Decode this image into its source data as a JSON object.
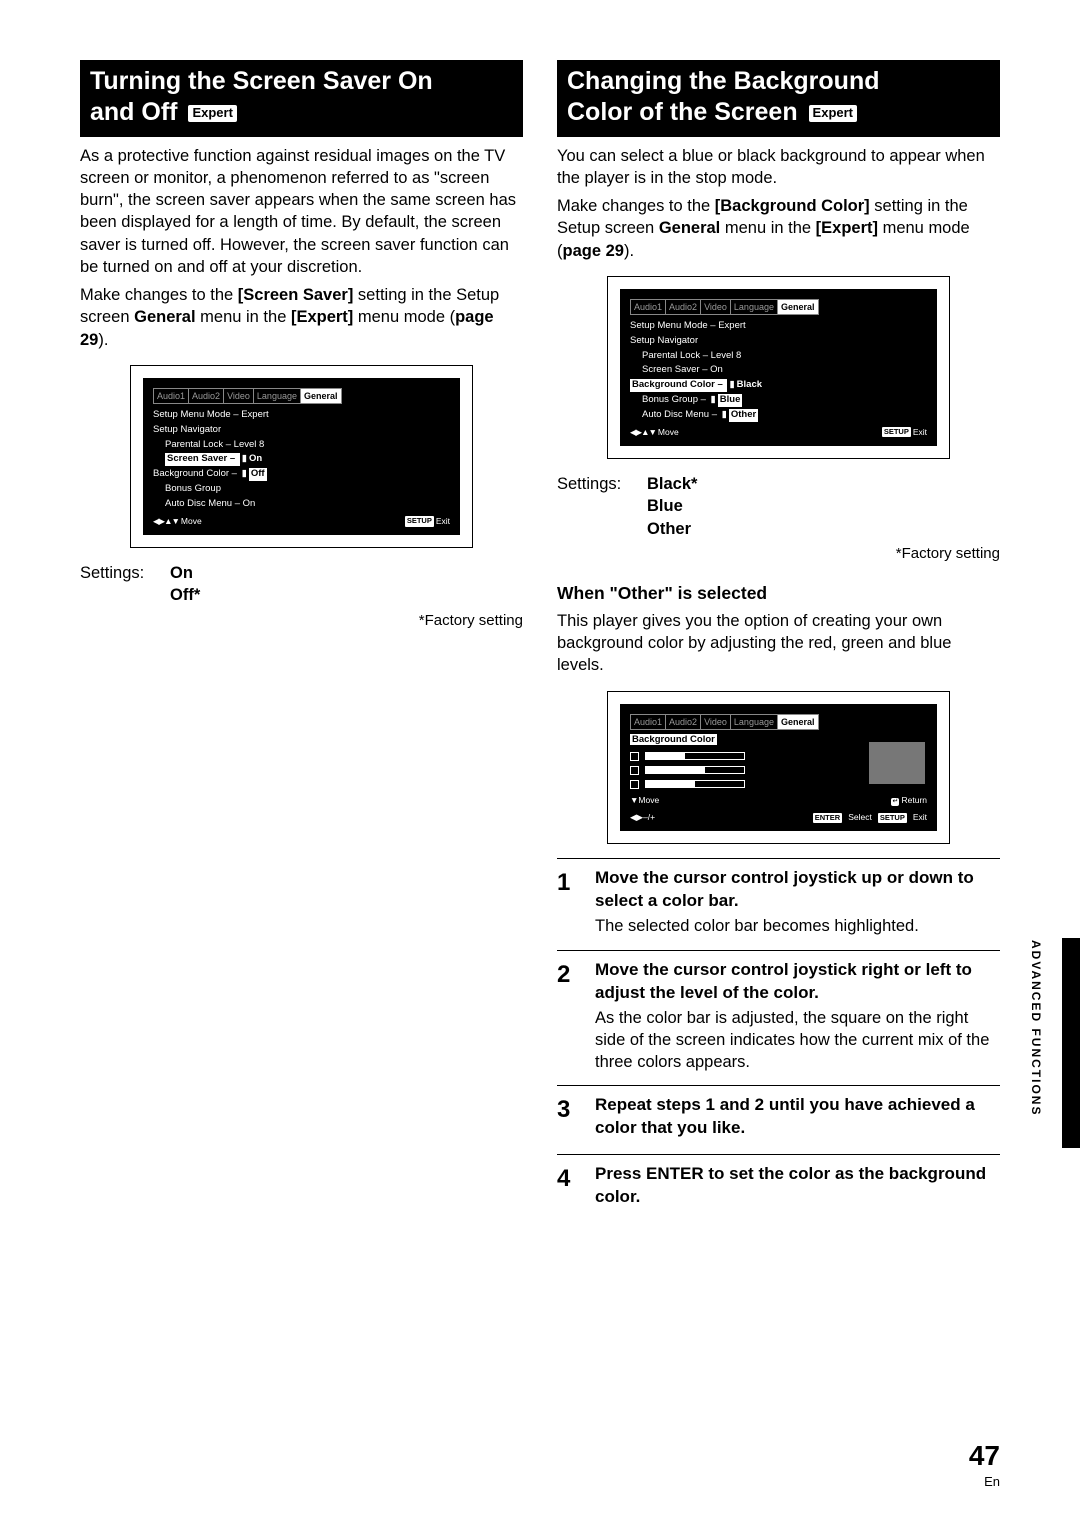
{
  "page": {
    "number": "47",
    "lang": "En",
    "side_label": "ADVANCED  FUNCTIONS"
  },
  "left": {
    "heading_line1": "Turning the Screen Saver On",
    "heading_line2": "and Off",
    "badge": "Expert",
    "para1": "As a protective function against residual images on the TV screen or monitor, a phenomenon referred to as \"screen burn\", the screen saver appears when the same screen has been displayed for a length of time. By default, the screen saver is turned off. However, the screen saver function can be turned on and off at your discretion.",
    "para2_a": "Make changes to the ",
    "para2_b_bold": "[Screen Saver]",
    "para2_c": " setting in the Setup screen ",
    "para2_d_bold": "General",
    "para2_e": " menu in the ",
    "para2_f_bold": "[Expert]",
    "para2_g": " menu mode (",
    "para2_h_bold": "page 29",
    "para2_i": ").",
    "osd": {
      "tabs": [
        "Audio1",
        "Audio2",
        "Video",
        "Language",
        "General"
      ],
      "active_tab": 4,
      "lines": [
        {
          "label": "Setup Menu Mode",
          "val": "Expert",
          "indent": 0,
          "hl": false
        },
        {
          "label": "Setup Navigator",
          "val": "",
          "indent": 0,
          "hl": false
        },
        {
          "label": "Parental Lock",
          "val": "Level 8",
          "indent": 1,
          "hl": false
        },
        {
          "label": "Screen Saver",
          "val": "On",
          "indent": 1,
          "hl": true,
          "opts": [
            "On"
          ]
        },
        {
          "label": "Background Color",
          "val": "Off",
          "indent": 0,
          "hl": false,
          "opts": [
            "Off"
          ]
        },
        {
          "label": "Bonus Group",
          "val": "",
          "indent": 1,
          "hl": false
        },
        {
          "label": "Auto Disc Menu",
          "val": "On",
          "indent": 1,
          "hl": false
        }
      ],
      "footer_left": "Move",
      "footer_right_pill": "SETUP",
      "footer_right": "Exit"
    },
    "settings_label": "Settings:",
    "settings_vals": [
      "On",
      "Off*"
    ],
    "factory": "*Factory setting"
  },
  "right": {
    "heading_line1": "Changing the Background",
    "heading_line2": "Color of the Screen",
    "badge": "Expert",
    "para1": "You can select a blue or black background to appear when the player is in the stop mode.",
    "para2_a": "Make changes to the ",
    "para2_b_bold": "[Background Color]",
    "para2_c": " setting in the Setup screen ",
    "para2_d_bold": "General",
    "para2_e": " menu in the ",
    "para2_f_bold": "[Expert]",
    "para2_g": " menu mode (",
    "para2_h_bold": "page 29",
    "para2_i": ").",
    "osd": {
      "tabs": [
        "Audio1",
        "Audio2",
        "Video",
        "Language",
        "General"
      ],
      "active_tab": 4,
      "lines": [
        {
          "label": "Setup Menu Mode",
          "val": "Expert",
          "indent": 0,
          "hl": false
        },
        {
          "label": "Setup Navigator",
          "val": "",
          "indent": 0,
          "hl": false
        },
        {
          "label": "Parental Lock",
          "val": "Level 8",
          "indent": 1,
          "hl": false
        },
        {
          "label": "Screen Saver",
          "val": "On",
          "indent": 1,
          "hl": false
        },
        {
          "label": "Background Color",
          "val": "",
          "indent": 0,
          "hl": true,
          "opts": [
            "Black"
          ]
        },
        {
          "label": "Bonus Group",
          "val": "",
          "indent": 1,
          "hl": false,
          "opts": [
            "Blue"
          ]
        },
        {
          "label": "Auto Disc Menu",
          "val": "",
          "indent": 1,
          "hl": false,
          "opts": [
            "Other"
          ]
        }
      ],
      "footer_left": "Move",
      "footer_right_pill": "SETUP",
      "footer_right": "Exit"
    },
    "settings_label": "Settings:",
    "settings_vals": [
      "Black*",
      "Blue",
      "Other"
    ],
    "factory": "*Factory setting",
    "subhead": "When \"Other\" is selected",
    "subpara": "This player gives you the option of creating your own background color by adjusting the red, green and blue levels.",
    "osd2": {
      "tabs": [
        "Audio1",
        "Audio2",
        "Video",
        "Language",
        "General"
      ],
      "active_tab": 4,
      "title_hl": "Background Color",
      "bars": [
        40,
        60,
        50
      ],
      "footer": {
        "move": "Move",
        "return": "Return",
        "pm": "–/+",
        "enter_pill": "ENTER",
        "enter": "Select",
        "setup_pill": "SETUP",
        "exit": "Exit"
      }
    },
    "steps": [
      {
        "n": "1",
        "title": "Move the cursor control joystick up or down to select a color bar.",
        "text": "The selected color bar becomes highlighted."
      },
      {
        "n": "2",
        "title": "Move the cursor control joystick right or left to adjust the level of the color.",
        "text": "As the color bar is adjusted, the square on the right side of the screen indicates how the current mix of the three colors appears."
      },
      {
        "n": "3",
        "title": "Repeat steps 1 and 2 until you have achieved a color that you like.",
        "text": ""
      },
      {
        "n": "4",
        "title": "Press ENTER to set the color as the background color.",
        "text": ""
      }
    ]
  }
}
